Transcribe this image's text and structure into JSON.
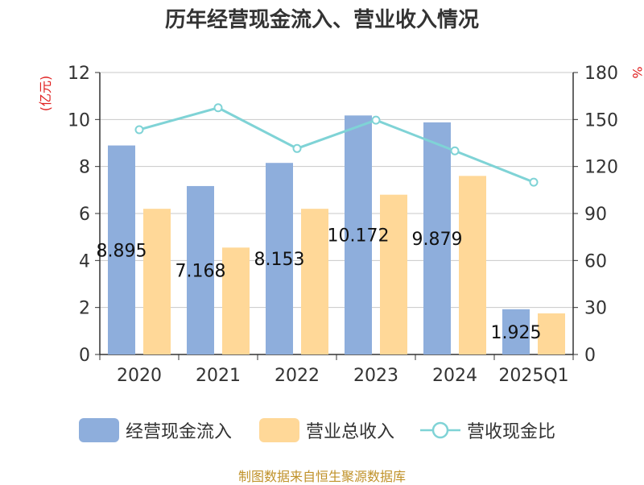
{
  "chart_data": {
    "type": "bar",
    "title": "历年经营现金流入、营业收入情况",
    "categories": [
      "2020",
      "2021",
      "2022",
      "2023",
      "2024",
      "2025Q1"
    ],
    "y_left": {
      "unit_label": "(亿元)",
      "range": [
        0,
        12
      ],
      "ticks": [
        0,
        2,
        4,
        6,
        8,
        10,
        12
      ]
    },
    "y_right": {
      "unit_label": "%",
      "range": [
        0,
        180
      ],
      "ticks": [
        0,
        30,
        60,
        90,
        120,
        150,
        180
      ]
    },
    "grid": true,
    "legend_position": "bottom",
    "series": [
      {
        "name": "经营现金流入",
        "kind": "bar",
        "axis": "left",
        "color": "#8eaedc",
        "values": [
          8.895,
          7.168,
          8.153,
          10.172,
          9.879,
          1.925
        ],
        "data_labels": [
          "8.895",
          "7.168",
          "8.153",
          "10.172",
          "9.879",
          "1.925"
        ]
      },
      {
        "name": "营业总收入",
        "kind": "bar",
        "axis": "left",
        "color": "#ffd898",
        "values": [
          6.2,
          4.55,
          6.2,
          6.8,
          7.6,
          1.75
        ]
      },
      {
        "name": "营收现金比",
        "kind": "line",
        "axis": "right",
        "color": "#7fd3d6",
        "values": [
          143.5,
          157.5,
          131.5,
          149.6,
          130.0,
          110.0
        ]
      }
    ]
  },
  "source_note": "制图数据来自恒生聚源数据库"
}
